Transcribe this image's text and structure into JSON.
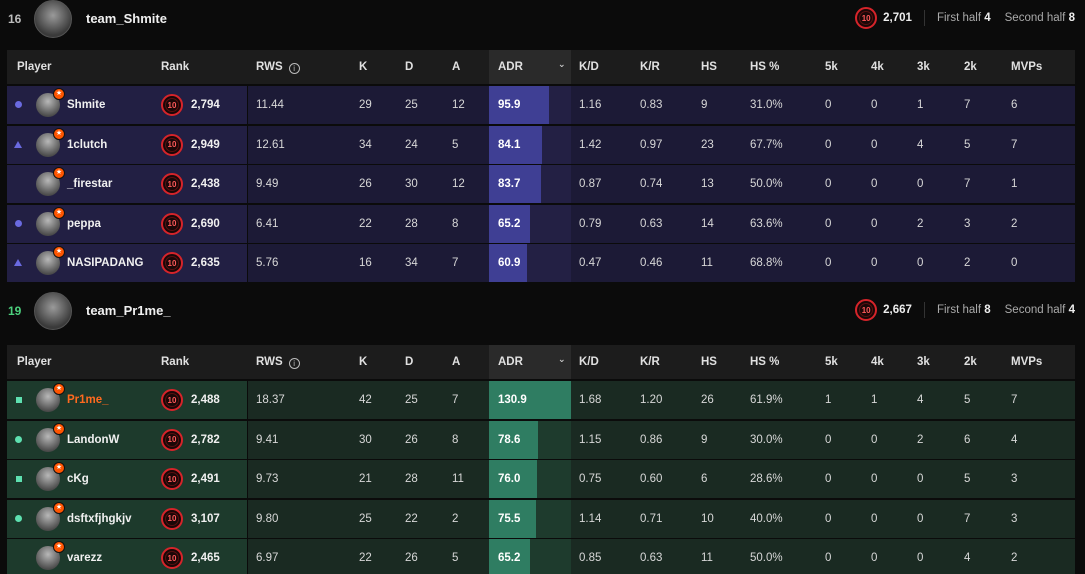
{
  "columns": {
    "player": "Player",
    "rank": "Rank",
    "rws": "RWS",
    "k": "K",
    "d": "D",
    "a": "A",
    "adr": "ADR",
    "kd": "K/D",
    "kr": "K/R",
    "hs": "HS",
    "hs_pct": "HS %",
    "k5": "5k",
    "k4": "4k",
    "k3": "3k",
    "k2": "2k",
    "mvps": "MVPs"
  },
  "info_icon": "i",
  "level_icon_text": "10",
  "adr_max": 130.9,
  "colors": {
    "team1_row": "#1c1a36",
    "team1_name": "#221f43",
    "team1_adr_bg": "#232044",
    "team1_adr_fill": "#3f3f94",
    "team1_marker": "#6a6ae0",
    "team2_row": "#1a2a22",
    "team2_name": "#1d3a2c",
    "team2_adr_bg": "#1e3b2d",
    "team2_adr_fill": "#2f7d62",
    "team2_marker": "#5ee0b0"
  },
  "teams": [
    {
      "score": "16",
      "win": false,
      "name": "team_Shmite",
      "elo": "2,701",
      "first_half_label": "First half",
      "first_half": "4",
      "second_half_label": "Second half",
      "second_half": "8",
      "players": [
        {
          "marker": "circle",
          "name": "Shmite",
          "rank": "2,794",
          "rws": "11.44",
          "k": "29",
          "d": "25",
          "a": "12",
          "adr": "95.9",
          "adr_value": 95.9,
          "kd": "1.16",
          "kr": "0.83",
          "hs": "9",
          "hs_pct": "31.0%",
          "k5": "0",
          "k4": "0",
          "k3": "1",
          "k2": "7",
          "mvps": "6"
        },
        {
          "marker": "triangle",
          "name": "1clutch",
          "rank": "2,949",
          "rws": "12.61",
          "k": "34",
          "d": "24",
          "a": "5",
          "adr": "84.1",
          "adr_value": 84.1,
          "kd": "1.42",
          "kr": "0.97",
          "hs": "23",
          "hs_pct": "67.7%",
          "k5": "0",
          "k4": "0",
          "k3": "4",
          "k2": "5",
          "mvps": "7"
        },
        {
          "marker": "none",
          "name": "_firestar",
          "rank": "2,438",
          "rws": "9.49",
          "k": "26",
          "d": "30",
          "a": "12",
          "adr": "83.7",
          "adr_value": 83.7,
          "kd": "0.87",
          "kr": "0.74",
          "hs": "13",
          "hs_pct": "50.0%",
          "k5": "0",
          "k4": "0",
          "k3": "0",
          "k2": "7",
          "mvps": "1"
        },
        {
          "marker": "circle",
          "name": "peppa",
          "rank": "2,690",
          "rws": "6.41",
          "k": "22",
          "d": "28",
          "a": "8",
          "adr": "65.2",
          "adr_value": 65.2,
          "kd": "0.79",
          "kr": "0.63",
          "hs": "14",
          "hs_pct": "63.6%",
          "k5": "0",
          "k4": "0",
          "k3": "2",
          "k2": "3",
          "mvps": "2"
        },
        {
          "marker": "triangle",
          "name": "NASIPADANG",
          "rank": "2,635",
          "rws": "5.76",
          "k": "16",
          "d": "34",
          "a": "7",
          "adr": "60.9",
          "adr_value": 60.9,
          "kd": "0.47",
          "kr": "0.46",
          "hs": "11",
          "hs_pct": "68.8%",
          "k5": "0",
          "k4": "0",
          "k3": "0",
          "k2": "2",
          "mvps": "0"
        }
      ]
    },
    {
      "score": "19",
      "win": true,
      "name": "team_Pr1me_",
      "elo": "2,667",
      "first_half_label": "First half",
      "first_half": "8",
      "second_half_label": "Second half",
      "second_half": "4",
      "players": [
        {
          "marker": "square",
          "name": "Pr1me_",
          "highlight": true,
          "rank": "2,488",
          "rws": "18.37",
          "k": "42",
          "d": "25",
          "a": "7",
          "adr": "130.9",
          "adr_value": 130.9,
          "kd": "1.68",
          "kr": "1.20",
          "hs": "26",
          "hs_pct": "61.9%",
          "k5": "1",
          "k4": "1",
          "k3": "4",
          "k2": "5",
          "mvps": "7"
        },
        {
          "marker": "circle",
          "name": "LandonW",
          "rank": "2,782",
          "rws": "9.41",
          "k": "30",
          "d": "26",
          "a": "8",
          "adr": "78.6",
          "adr_value": 78.6,
          "kd": "1.15",
          "kr": "0.86",
          "hs": "9",
          "hs_pct": "30.0%",
          "k5": "0",
          "k4": "0",
          "k3": "2",
          "k2": "6",
          "mvps": "4"
        },
        {
          "marker": "square",
          "name": "cKg",
          "rank": "2,491",
          "rws": "9.73",
          "k": "21",
          "d": "28",
          "a": "11",
          "adr": "76.0",
          "adr_value": 76.0,
          "kd": "0.75",
          "kr": "0.60",
          "hs": "6",
          "hs_pct": "28.6%",
          "k5": "0",
          "k4": "0",
          "k3": "0",
          "k2": "5",
          "mvps": "3"
        },
        {
          "marker": "circle",
          "name": "dsftxfjhgkjv",
          "rank": "3,107",
          "rws": "9.80",
          "k": "25",
          "d": "22",
          "a": "2",
          "adr": "75.5",
          "adr_value": 75.5,
          "kd": "1.14",
          "kr": "0.71",
          "hs": "10",
          "hs_pct": "40.0%",
          "k5": "0",
          "k4": "0",
          "k3": "0",
          "k2": "7",
          "mvps": "3"
        },
        {
          "marker": "none",
          "name": "varezz",
          "rank": "2,465",
          "rws": "6.97",
          "k": "22",
          "d": "26",
          "a": "5",
          "adr": "65.2",
          "adr_value": 65.2,
          "kd": "0.85",
          "kr": "0.63",
          "hs": "11",
          "hs_pct": "50.0%",
          "k5": "0",
          "k4": "0",
          "k3": "0",
          "k2": "4",
          "mvps": "2"
        }
      ]
    }
  ]
}
